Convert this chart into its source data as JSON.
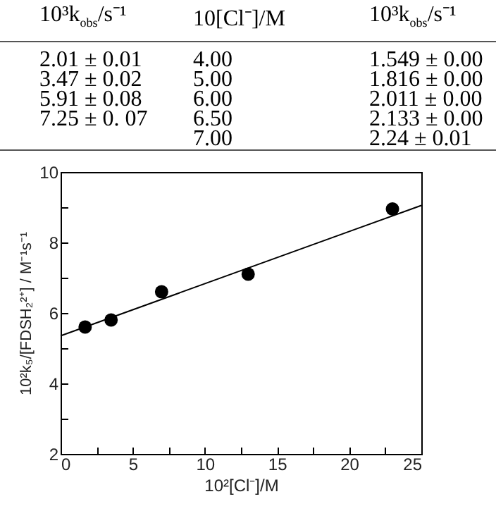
{
  "chart_data": [
    {
      "type": "other",
      "annotations": [
        "10³k$_{obs}$/s⁻¹",
        "10[Cl⁻]/M",
        "10³k$_{obs}$/s⁻¹",
        "2.01 ± 0.01",
        "4.00",
        "1.549 ± 0.00",
        "3.47 ± 0.02",
        "5.00",
        "1.816 ± 0.00",
        "5.91 ± 0.08",
        "6.00",
        "2.011 ± 0.00",
        "7.25 ± 0. 07",
        "6.50",
        "2.133 ± 0.00",
        "7.00",
        "2.24 ± 0.01"
      ]
    },
    {
      "type": "scatter",
      "xlabel": "10²[Cl⁻]/M",
      "ylabel": "10²k₅/[FDSH₂²⁺] / M⁻¹s⁻¹",
      "marker": "circle",
      "grid": false,
      "xlim": [
        0,
        25
      ],
      "xticks": [
        0,
        {
          "value": 2.5,
          "label": null
        },
        5,
        {
          "value": 7.5,
          "label": null
        },
        10,
        {
          "value": 12.5,
          "label": null
        },
        15,
        {
          "value": 17.5,
          "label": null
        },
        20,
        {
          "value": 22.5,
          "label": null
        },
        25
      ],
      "ylim": [
        2,
        10
      ],
      "yticks": [
        2,
        {
          "value": 3,
          "label": null
        },
        4,
        {
          "value": 5,
          "label": null
        },
        6,
        {
          "value": 7,
          "label": null
        },
        8,
        {
          "value": 9,
          "label": null
        },
        10
      ],
      "series": [
        {
          "type": "scatter",
          "color": "#000000",
          "x": [
            1.7,
            3.5,
            7,
            13,
            23
          ],
          "values": [
            5.6,
            5.8,
            6.6,
            7.1,
            8.95
          ]
        },
        {
          "type": "line",
          "color": "#000000",
          "marker": "none",
          "x": [
            0,
            25
          ],
          "values": [
            5.35,
            9.05
          ]
        }
      ]
    }
  ]
}
